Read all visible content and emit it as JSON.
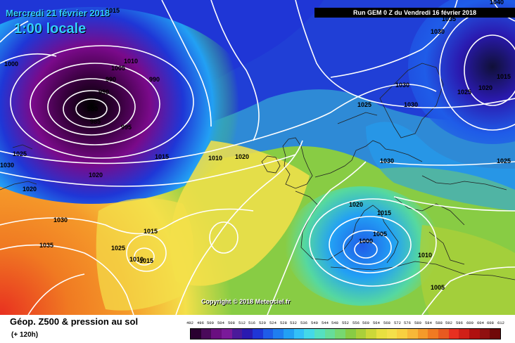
{
  "header": {
    "date_line": "Mercredi 21 février 2018",
    "time_line": "1:00 locale",
    "run_line": "Run GEM 0 Z du Vendredi 16 février 2018"
  },
  "map": {
    "copyright": "Copyright © 2018 Meteociel.fr",
    "isobar_labels": [
      "1040",
      "1015",
      "1000",
      "1010",
      "1005",
      "990",
      "990",
      "990",
      "980",
      "985",
      "995",
      "1015",
      "1025",
      "1030",
      "1020",
      "1020",
      "1010",
      "1020",
      "1030",
      "1035",
      "1030",
      "1030",
      "1025",
      "1030",
      "1025",
      "1030",
      "1035",
      "1025",
      "1020",
      "1015",
      "1015",
      "1025",
      "1010",
      "1015",
      "1020",
      "1015",
      "1005",
      "1000",
      "1010",
      "1005"
    ],
    "colors": {
      "deep_low": "#000000",
      "purple": "#7a0a8a",
      "blue": "#1f36d6",
      "light_blue": "#33ccff",
      "green": "#55cc44",
      "yellow": "#f4e04a",
      "orange": "#f59a2a",
      "red": "#e83020",
      "land_border": "#222222",
      "isobar": "#ffffff"
    }
  },
  "footer": {
    "title": "Géop. Z500 & pression au sol",
    "subtitle": "(+ 120h)",
    "scale_ticks": [
      "492",
      "496",
      "500",
      "504",
      "508",
      "512",
      "516",
      "520",
      "524",
      "528",
      "532",
      "536",
      "540",
      "544",
      "548",
      "552",
      "556",
      "560",
      "564",
      "568",
      "572",
      "576",
      "580",
      "584",
      "588",
      "592",
      "596",
      "600",
      "604",
      "608",
      "612"
    ],
    "scale_colors": [
      "#2a0030",
      "#4a0a5a",
      "#6a0f80",
      "#7a1a9a",
      "#4a1a9a",
      "#2a1ab0",
      "#1f36d6",
      "#1f5ce8",
      "#1f7ef0",
      "#22a0f4",
      "#33c0f8",
      "#44d8e8",
      "#55e0c0",
      "#66dd99",
      "#77d870",
      "#88cc44",
      "#aad03a",
      "#ccd838",
      "#e8e040",
      "#f4e04a",
      "#f8d040",
      "#f8b838",
      "#f59a2a",
      "#f07a22",
      "#e85a20",
      "#e83020",
      "#d02018",
      "#b01010",
      "#901010",
      "#700808"
    ]
  }
}
